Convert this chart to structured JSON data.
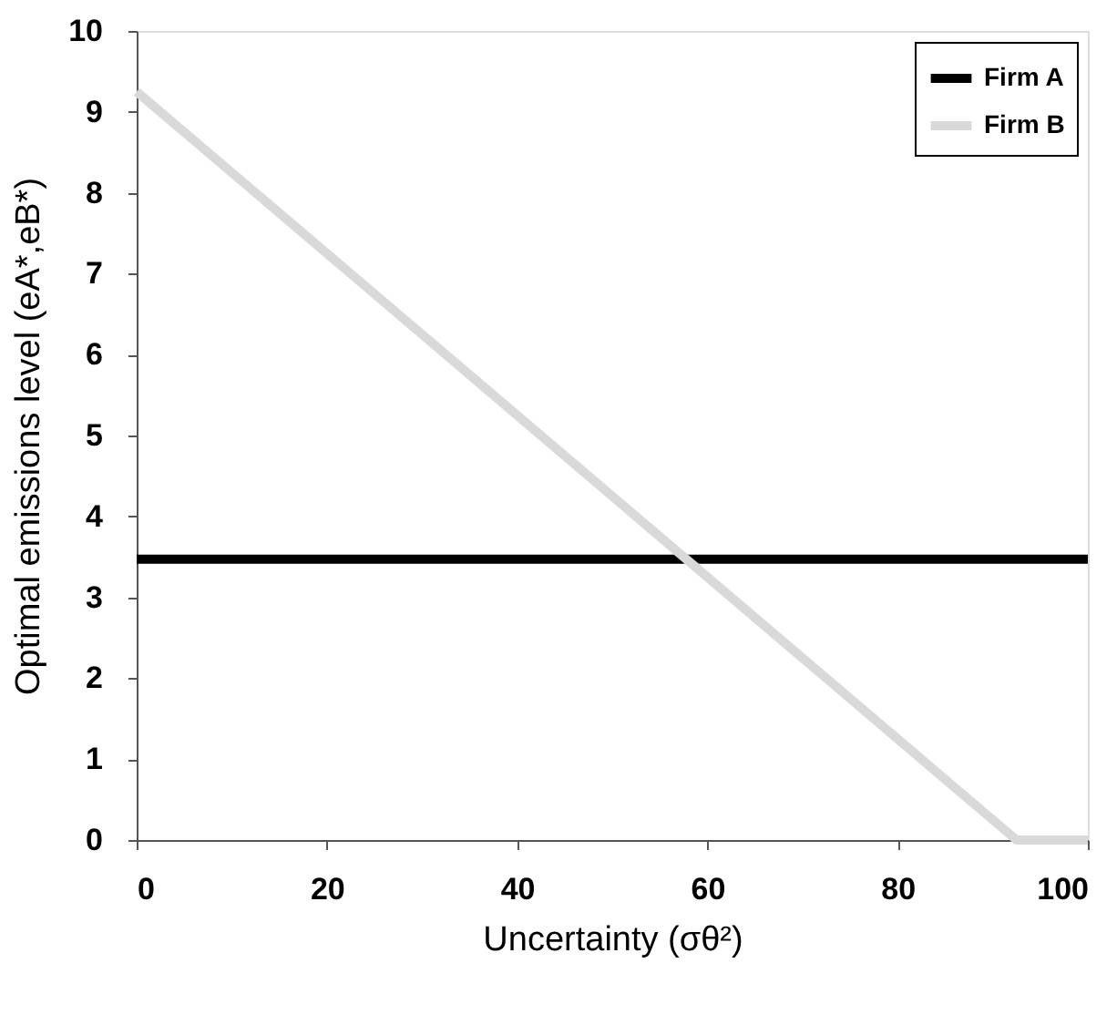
{
  "chart_data": {
    "type": "line",
    "xlabel": "Uncertainty (σθ²)",
    "ylabel": "Optimal emissions level (eA*,eB*)",
    "series": [
      {
        "name": "Firm A",
        "color": "#000000",
        "x": [
          0,
          100
        ],
        "values": [
          3.47,
          3.47
        ]
      },
      {
        "name": "Firm B",
        "color": "#d9d9d9",
        "x": [
          0,
          92.5,
          100
        ],
        "values": [
          9.25,
          0,
          0
        ]
      }
    ],
    "xlim": [
      0,
      100
    ],
    "xticks": [
      0,
      20,
      40,
      60,
      80,
      100
    ],
    "ylim": [
      0,
      10
    ],
    "yticks": [
      0,
      1,
      2,
      3,
      4,
      5,
      6,
      7,
      8,
      9,
      10
    ],
    "grid": false,
    "legend": "top right",
    "marker": "none",
    "line_style": "solid"
  }
}
